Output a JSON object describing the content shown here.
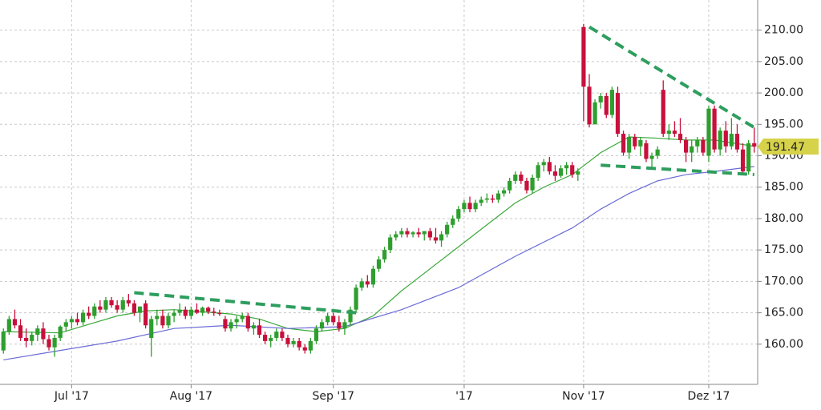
{
  "chart_data": {
    "type": "candlestick",
    "ylim": [
      153.6,
      214.8
    ],
    "yticks": [
      {
        "value": 160,
        "label": "160.00"
      },
      {
        "value": 165,
        "label": "165.00"
      },
      {
        "value": 170,
        "label": "170.00"
      },
      {
        "value": 175,
        "label": "175.00"
      },
      {
        "value": 180,
        "label": "180.00"
      },
      {
        "value": 185,
        "label": "185.00"
      },
      {
        "value": 190,
        "label": "190.00"
      },
      {
        "value": 195,
        "label": "195.00"
      },
      {
        "value": 200,
        "label": "200.00"
      },
      {
        "value": 205,
        "label": "205.00"
      },
      {
        "value": 210,
        "label": "210.00"
      }
    ],
    "xlim": [
      -0.6,
      132.6
    ],
    "xticks": [
      {
        "value": 12,
        "label": "Jul '17"
      },
      {
        "value": 33,
        "label": "Aug '17"
      },
      {
        "value": 58,
        "label": "Sep '17"
      },
      {
        "value": 81,
        "label": "'17"
      },
      {
        "value": 102,
        "label": "Nov '17"
      },
      {
        "value": 124,
        "label": "Dez '17"
      }
    ],
    "grid": true,
    "up_color": "#2e9e2e",
    "down_color": "#c8103c",
    "last_price": 191.47,
    "last_price_color": "#d6d24a",
    "ohlc": [
      [
        159.0,
        162.5,
        158.5,
        162.0
      ],
      [
        162.0,
        164.5,
        161.5,
        164.0
      ],
      [
        164.0,
        165.5,
        162.5,
        163.0
      ],
      [
        163.0,
        164.0,
        160.5,
        161.0
      ],
      [
        161.0,
        162.5,
        159.5,
        160.5
      ],
      [
        160.5,
        162.0,
        159.8,
        161.5
      ],
      [
        161.5,
        163.0,
        160.5,
        162.5
      ],
      [
        162.5,
        163.5,
        160.0,
        160.8
      ],
      [
        160.8,
        161.5,
        159.0,
        159.5
      ],
      [
        159.5,
        161.5,
        158.0,
        161.0
      ],
      [
        161.0,
        163.0,
        160.5,
        162.8
      ],
      [
        162.8,
        164.0,
        162.0,
        163.5
      ],
      [
        163.5,
        164.5,
        162.5,
        164.0
      ],
      [
        164.0,
        165.0,
        163.0,
        163.5
      ],
      [
        163.5,
        165.5,
        163.0,
        165.0
      ],
      [
        165.0,
        166.0,
        164.0,
        164.5
      ],
      [
        164.5,
        166.5,
        164.0,
        166.0
      ],
      [
        166.0,
        167.0,
        165.0,
        165.5
      ],
      [
        165.5,
        167.5,
        165.0,
        167.0
      ],
      [
        167.0,
        167.5,
        165.8,
        166.2
      ],
      [
        166.2,
        167.0,
        165.0,
        165.5
      ],
      [
        165.5,
        167.5,
        165.0,
        167.0
      ],
      [
        167.0,
        168.0,
        166.0,
        166.5
      ],
      [
        166.5,
        167.0,
        164.5,
        165.0
      ],
      [
        165.0,
        166.0,
        163.5,
        166.0
      ],
      [
        166.5,
        167.0,
        162.5,
        163.0
      ],
      [
        161.0,
        164.5,
        158.0,
        164.0
      ],
      [
        164.0,
        165.5,
        163.0,
        164.5
      ],
      [
        164.5,
        165.5,
        162.5,
        163.0
      ],
      [
        163.0,
        165.0,
        162.5,
        164.5
      ],
      [
        164.5,
        165.5,
        163.5,
        165.0
      ],
      [
        165.0,
        166.5,
        164.5,
        165.5
      ],
      [
        165.5,
        166.0,
        164.0,
        164.5
      ],
      [
        164.5,
        166.0,
        164.0,
        165.5
      ],
      [
        165.5,
        166.5,
        164.8,
        165.0
      ],
      [
        165.0,
        166.0,
        164.5,
        165.8
      ],
      [
        165.8,
        166.0,
        164.8,
        165.2
      ],
      [
        165.2,
        165.8,
        164.5,
        165.0
      ],
      [
        165.0,
        165.5,
        164.5,
        164.8
      ],
      [
        164.0,
        164.5,
        162.0,
        162.5
      ],
      [
        162.5,
        164.0,
        162.0,
        163.5
      ],
      [
        163.5,
        164.5,
        162.5,
        164.0
      ],
      [
        164.0,
        165.0,
        163.5,
        164.5
      ],
      [
        164.5,
        165.0,
        162.0,
        162.5
      ],
      [
        162.5,
        163.5,
        161.5,
        163.0
      ],
      [
        163.0,
        164.0,
        161.0,
        161.5
      ],
      [
        161.5,
        162.0,
        160.0,
        160.5
      ],
      [
        160.5,
        161.5,
        159.5,
        161.0
      ],
      [
        161.0,
        162.5,
        160.5,
        162.0
      ],
      [
        162.0,
        162.5,
        160.5,
        161.0
      ],
      [
        161.0,
        161.5,
        159.5,
        160.0
      ],
      [
        160.0,
        161.0,
        159.5,
        160.5
      ],
      [
        160.5,
        161.0,
        159.0,
        159.5
      ],
      [
        159.5,
        160.0,
        158.5,
        159.0
      ],
      [
        159.0,
        161.0,
        158.5,
        160.5
      ],
      [
        160.5,
        163.0,
        160.0,
        162.5
      ],
      [
        162.5,
        164.0,
        162.0,
        163.5
      ],
      [
        163.5,
        165.0,
        163.0,
        164.5
      ],
      [
        164.5,
        165.0,
        163.0,
        163.5
      ],
      [
        163.5,
        164.5,
        162.0,
        162.5
      ],
      [
        162.5,
        164.0,
        161.5,
        163.5
      ],
      [
        163.5,
        166.0,
        163.0,
        165.5
      ],
      [
        165.5,
        169.5,
        165.0,
        169.0
      ],
      [
        169.0,
        170.5,
        168.5,
        170.0
      ],
      [
        170.0,
        171.0,
        169.0,
        169.5
      ],
      [
        169.5,
        172.5,
        169.0,
        172.0
      ],
      [
        172.0,
        174.0,
        171.5,
        173.5
      ],
      [
        173.5,
        175.5,
        173.0,
        175.0
      ],
      [
        175.0,
        177.5,
        174.5,
        177.0
      ],
      [
        177.0,
        178.0,
        176.5,
        177.5
      ],
      [
        177.5,
        178.5,
        177.0,
        178.0
      ],
      [
        178.0,
        178.5,
        177.0,
        177.5
      ],
      [
        177.5,
        178.0,
        177.0,
        177.8
      ],
      [
        177.8,
        178.5,
        177.0,
        177.5
      ],
      [
        177.5,
        178.0,
        176.5,
        178.0
      ],
      [
        178.0,
        178.5,
        176.5,
        177.0
      ],
      [
        177.0,
        178.5,
        176.0,
        176.5
      ],
      [
        176.5,
        178.0,
        175.5,
        177.5
      ],
      [
        177.5,
        179.5,
        177.0,
        179.0
      ],
      [
        179.0,
        180.5,
        178.5,
        180.0
      ],
      [
        180.0,
        182.0,
        179.5,
        181.5
      ],
      [
        181.5,
        183.0,
        181.0,
        182.5
      ],
      [
        182.5,
        183.5,
        181.0,
        181.5
      ],
      [
        181.5,
        183.0,
        181.0,
        182.5
      ],
      [
        182.5,
        183.5,
        182.0,
        183.0
      ],
      [
        183.0,
        184.0,
        182.5,
        183.2
      ],
      [
        183.2,
        183.8,
        182.5,
        183.0
      ],
      [
        183.0,
        184.5,
        182.5,
        184.0
      ],
      [
        184.0,
        185.0,
        183.5,
        184.5
      ],
      [
        184.5,
        186.5,
        184.0,
        186.0
      ],
      [
        186.0,
        187.5,
        185.5,
        187.0
      ],
      [
        187.0,
        187.5,
        185.5,
        186.0
      ],
      [
        186.0,
        186.5,
        184.0,
        184.5
      ],
      [
        184.5,
        187.0,
        184.0,
        186.5
      ],
      [
        186.5,
        189.0,
        186.0,
        188.5
      ],
      [
        188.5,
        189.5,
        187.5,
        189.0
      ],
      [
        189.0,
        189.8,
        187.0,
        187.5
      ],
      [
        187.5,
        188.5,
        186.0,
        186.8
      ],
      [
        186.8,
        188.5,
        186.5,
        188.0
      ],
      [
        188.0,
        189.0,
        187.0,
        188.5
      ],
      [
        188.5,
        189.0,
        186.5,
        187.0
      ],
      [
        187.0,
        188.0,
        186.0,
        187.5
      ],
      [
        210.5,
        211.0,
        195.5,
        201.0
      ],
      [
        201.0,
        203.0,
        194.5,
        195.0
      ],
      [
        195.0,
        199.0,
        195.0,
        198.5
      ],
      [
        198.5,
        200.0,
        197.5,
        199.5
      ],
      [
        199.5,
        200.0,
        196.0,
        196.5
      ],
      [
        196.5,
        201.0,
        196.0,
        200.5
      ],
      [
        200.0,
        201.0,
        193.0,
        193.5
      ],
      [
        193.5,
        194.0,
        190.0,
        190.5
      ],
      [
        190.5,
        193.5,
        189.5,
        193.0
      ],
      [
        193.0,
        193.5,
        191.0,
        191.5
      ],
      [
        191.5,
        193.0,
        190.0,
        192.5
      ],
      [
        192.0,
        192.5,
        189.0,
        189.5
      ],
      [
        189.5,
        190.5,
        188.0,
        190.0
      ],
      [
        190.0,
        191.5,
        189.5,
        191.0
      ],
      [
        200.5,
        202.0,
        193.0,
        193.5
      ],
      [
        193.5,
        195.0,
        192.5,
        194.0
      ],
      [
        194.0,
        195.5,
        193.0,
        193.5
      ],
      [
        193.5,
        196.0,
        192.0,
        192.5
      ],
      [
        192.5,
        193.0,
        189.0,
        190.5
      ],
      [
        190.5,
        192.5,
        189.0,
        191.5
      ],
      [
        191.5,
        193.0,
        190.5,
        192.5
      ],
      [
        192.5,
        193.0,
        190.0,
        190.5
      ],
      [
        190.0,
        198.0,
        189.0,
        197.5
      ],
      [
        197.5,
        198.0,
        190.5,
        191.0
      ],
      [
        191.0,
        194.5,
        190.0,
        194.0
      ],
      [
        194.0,
        195.5,
        190.5,
        191.5
      ],
      [
        191.5,
        196.0,
        191.0,
        193.5
      ],
      [
        193.5,
        195.0,
        190.5,
        191.0
      ],
      [
        191.0,
        192.0,
        187.0,
        187.5
      ],
      [
        187.5,
        192.5,
        187.0,
        192.0
      ],
      [
        192.0,
        194.5,
        190.5,
        191.47
      ]
    ],
    "lines": [
      {
        "color": "#3aa83a",
        "x": [
          0,
          10,
          20,
          25,
          30,
          40,
          45,
          50,
          55,
          60,
          65,
          70,
          75,
          80,
          85,
          90,
          95,
          100,
          105,
          110,
          115,
          120,
          125,
          132
        ],
        "values": [
          162.0,
          161.8,
          164.5,
          165.3,
          165.5,
          164.8,
          164.0,
          162.5,
          162.0,
          162.5,
          164.5,
          168.5,
          172.0,
          175.5,
          179.0,
          182.5,
          185.0,
          187.0,
          190.5,
          193.0,
          192.8,
          192.5,
          192.5,
          191.5
        ]
      },
      {
        "color": "#6b6bd6",
        "x": [
          0,
          10,
          20,
          30,
          40,
          50,
          60,
          70,
          80,
          90,
          100,
          105,
          110,
          115,
          120,
          125,
          132
        ],
        "values": [
          157.5,
          159.0,
          160.5,
          162.5,
          163.0,
          162.5,
          162.8,
          165.5,
          169.0,
          174.0,
          178.5,
          181.5,
          184.0,
          186.0,
          187.0,
          187.5,
          188.3
        ]
      }
    ],
    "trendlines": [
      {
        "color": "#2e9e5e",
        "x": [
          23,
          62
        ],
        "values": [
          168.2,
          165.0
        ]
      },
      {
        "color": "#2e9e5e",
        "x": [
          103,
          132
        ],
        "values": [
          210.5,
          194.5
        ]
      },
      {
        "color": "#2e9e5e",
        "x": [
          105,
          132
        ],
        "values": [
          188.5,
          187.0
        ]
      }
    ]
  }
}
